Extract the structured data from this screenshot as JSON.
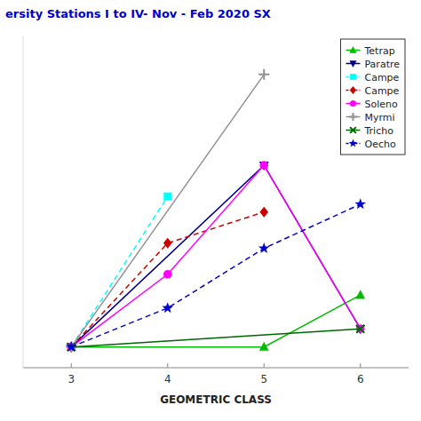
{
  "chart_data": {
    "type": "line",
    "title": "ersity Stations I to IV- Nov - Feb 2020 SX",
    "x_label": "GEOMETRIC CLASS",
    "xlim": [
      2.5,
      6.5
    ],
    "xticks": [
      3,
      4,
      5,
      6
    ],
    "ylim": [
      -0.08,
      1.2
    ],
    "tick_labels": "x",
    "grid": false,
    "legend": "upper right",
    "series": [
      {
        "name": "Tetrap",
        "color": "#00bb00",
        "marker": "triangle-up",
        "line_style": "solid",
        "x": [
          3,
          5,
          6
        ],
        "values": [
          0.0,
          0.0,
          0.2
        ]
      },
      {
        "name": "Paratre",
        "color": "#00008B",
        "marker": "triangle-down",
        "line_style": "solid",
        "x": [
          3,
          5,
          6
        ],
        "values": [
          0.0,
          0.7,
          0.07
        ]
      },
      {
        "name": "Campe",
        "color": "#00FFFF",
        "marker": "square",
        "line_style": "dashed",
        "x": [
          3,
          4
        ],
        "values": [
          0.0,
          0.58
        ]
      },
      {
        "name": "Campe",
        "color": "#cc0000",
        "marker": "diamond",
        "line_style": "dashed",
        "x": [
          3,
          4,
          5
        ],
        "values": [
          0.0,
          0.4,
          0.52
        ]
      },
      {
        "name": "Soleno",
        "color": "#FF00FF",
        "marker": "circle",
        "line_style": "solid",
        "x": [
          3,
          4,
          5,
          6
        ],
        "values": [
          0.0,
          0.28,
          0.7,
          0.07
        ]
      },
      {
        "name": "Myrmi",
        "color": "#909090",
        "marker": "plus",
        "line_style": "solid",
        "x": [
          3,
          5
        ],
        "values": [
          0.0,
          1.05
        ]
      },
      {
        "name": "Tricho",
        "color": "#006600",
        "marker": "x",
        "line_style": "solid",
        "x": [
          3,
          6
        ],
        "values": [
          0.0,
          0.07
        ]
      },
      {
        "name": "Oecho",
        "color": "#0000CC",
        "marker": "star",
        "line_style": "dashed",
        "x": [
          3,
          4,
          5,
          6
        ],
        "values": [
          0.0,
          0.15,
          0.38,
          0.55
        ]
      }
    ]
  }
}
